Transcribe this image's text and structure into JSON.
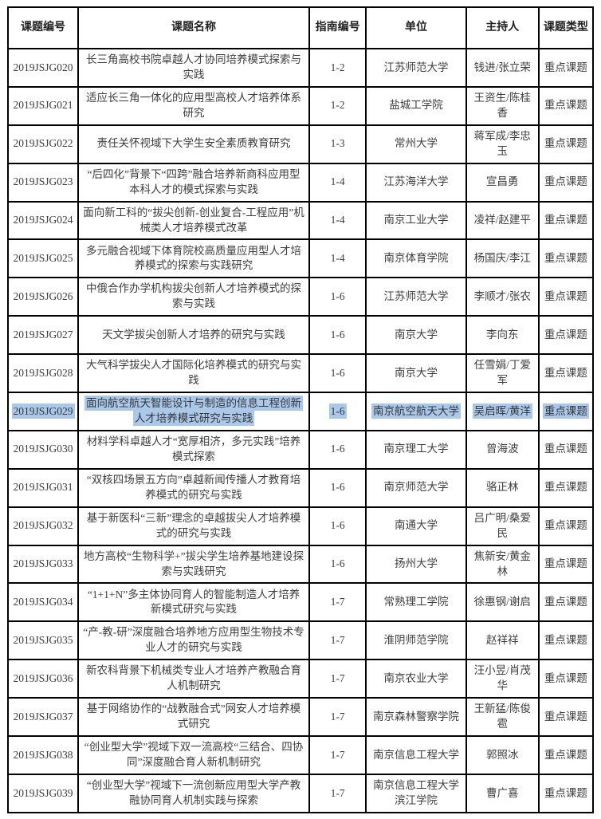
{
  "table": {
    "columns": [
      "课题编号",
      "课题名称",
      "指南编号",
      "单位",
      "主持人",
      "课题类型"
    ],
    "field_order": [
      "code",
      "title",
      "guide_no",
      "unit",
      "leader",
      "type"
    ],
    "highlight_color": "#abc8e8",
    "border_color": "#000000",
    "text_color": "#3d3d3d",
    "rows": [
      {
        "code": "2019JSJG020",
        "title": "长三角高校书院卓越人才协同培养模式探索与实践",
        "guide_no": "1-2",
        "unit": "江苏师范大学",
        "leader": "钱进/张立荣",
        "type": "重点课题",
        "highlighted": false
      },
      {
        "code": "2019JSJG021",
        "title": "适应长三角一体化的应用型高校人才培养体系研究",
        "guide_no": "1-2",
        "unit": "盐城工学院",
        "leader": "王资生/陈桂香",
        "type": "重点课题",
        "highlighted": false
      },
      {
        "code": "2019JSJG022",
        "title": "责任关怀视域下大学生安全素质教育研究",
        "guide_no": "1-3",
        "unit": "常州大学",
        "leader": "蒋军成/李忠玉",
        "type": "重点课题",
        "highlighted": false
      },
      {
        "code": "2019JSJG023",
        "title": "“后四化”背景下“四跨”融合培养新商科应用型本科人才的模式探索与实践",
        "guide_no": "1-4",
        "unit": "江苏海洋大学",
        "leader": "宣昌勇",
        "type": "重点课题",
        "highlighted": false
      },
      {
        "code": "2019JSJG024",
        "title": "面向新工科的“拔尖创新-创业复合-工程应用”机械类人才培养模式改革",
        "guide_no": "1-4",
        "unit": "南京工业大学",
        "leader": "凌祥/赵建平",
        "type": "重点课题",
        "highlighted": false
      },
      {
        "code": "2019JSJG025",
        "title": "多元融合视域下体育院校高质量应用型人才培养模式的探索与实践研究",
        "guide_no": "1-4",
        "unit": "南京体育学院",
        "leader": "杨国庆/李江",
        "type": "重点课题",
        "highlighted": false
      },
      {
        "code": "2019JSJG026",
        "title": "中俄合作办学机构拔尖创新人才培养模式的探索与实践",
        "guide_no": "1-6",
        "unit": "江苏师范大学",
        "leader": "李顺才/张农",
        "type": "重点课题",
        "highlighted": false
      },
      {
        "code": "2019JSJG027",
        "title": "天文学拔尖创新人才培养的研究与实践",
        "guide_no": "1-6",
        "unit": "南京大学",
        "leader": "李向东",
        "type": "重点课题",
        "highlighted": false
      },
      {
        "code": "2019JSJG028",
        "title": "大气科学拔尖人才国际化培养模式的研究与实践",
        "guide_no": "1-6",
        "unit": "南京大学",
        "leader": "任雪娟/丁爱军",
        "type": "重点课题",
        "highlighted": false
      },
      {
        "code": "2019JSJG029",
        "title": "面向航空航天智能设计与制造的信息工程创新人才培养模式研究与实践",
        "guide_no": "1-6",
        "unit": "南京航空航天大学",
        "leader": "吴启晖/黄洋",
        "type": "重点课题",
        "highlighted": true
      },
      {
        "code": "2019JSJG030",
        "title": "材料学科卓越人才“宽厚相济，多元实践”培养模式探索",
        "guide_no": "1-6",
        "unit": "南京理工大学",
        "leader": "曾海波",
        "type": "重点课题",
        "highlighted": false
      },
      {
        "code": "2019JSJG031",
        "title": "“双核四场景五方向”卓越新闻传播人才教育培养模式的研究与实践",
        "guide_no": "1-6",
        "unit": "南京师范大学",
        "leader": "骆正林",
        "type": "重点课题",
        "highlighted": false
      },
      {
        "code": "2019JSJG032",
        "title": "基于新医科“三新”理念的卓越拔尖人才培养模式的研究与实践",
        "guide_no": "1-6",
        "unit": "南通大学",
        "leader": "吕广明/桑爱民",
        "type": "重点课题",
        "highlighted": false
      },
      {
        "code": "2019JSJG033",
        "title": "地方高校“生物科学+”拔尖学生培养基地建设探索与实践研究",
        "guide_no": "1-6",
        "unit": "扬州大学",
        "leader": "焦新安/黄金林",
        "type": "重点课题",
        "highlighted": false
      },
      {
        "code": "2019JSJG034",
        "title": "“1+1+N”多主体协同育人的智能制造人才培养新模式研究与实践",
        "guide_no": "1-7",
        "unit": "常熟理工学院",
        "leader": "徐惠钢/谢启",
        "type": "重点课题",
        "highlighted": false
      },
      {
        "code": "2019JSJG035",
        "title": "“产-教-研”深度融合培养地方应用型生物技术专业人才的研究与实践",
        "guide_no": "1-7",
        "unit": "淮阴师范学院",
        "leader": "赵祥祥",
        "type": "重点课题",
        "highlighted": false
      },
      {
        "code": "2019JSJG036",
        "title": "新农科背景下机械类专业人才培养产教融合育人机制研究",
        "guide_no": "1-7",
        "unit": "南京农业大学",
        "leader": "汪小昱/肖茂华",
        "type": "重点课题",
        "highlighted": false
      },
      {
        "code": "2019JSJG037",
        "title": "基于网络协作的“战教融合式”网安人才培养模式研究",
        "guide_no": "1-7",
        "unit": "南京森林警察学院",
        "leader": "王新猛/陈俊雹",
        "type": "重点课题",
        "highlighted": false
      },
      {
        "code": "2019JSJG038",
        "title": "“创业型大学”视域下双一流高校“三结合、四协同”深度融合育人新机制研究",
        "guide_no": "1-7",
        "unit": "南京信息工程大学",
        "leader": "郭照冰",
        "type": "重点课题",
        "highlighted": false
      },
      {
        "code": "2019JSJG039",
        "title": "“创业型大学”视域下一流创新应用型大学产教融协同育人机制实践与探索",
        "guide_no": "1-7",
        "unit": "南京信息工程大学滨江学院",
        "leader": "曹广喜",
        "type": "重点课题",
        "highlighted": false
      }
    ]
  }
}
